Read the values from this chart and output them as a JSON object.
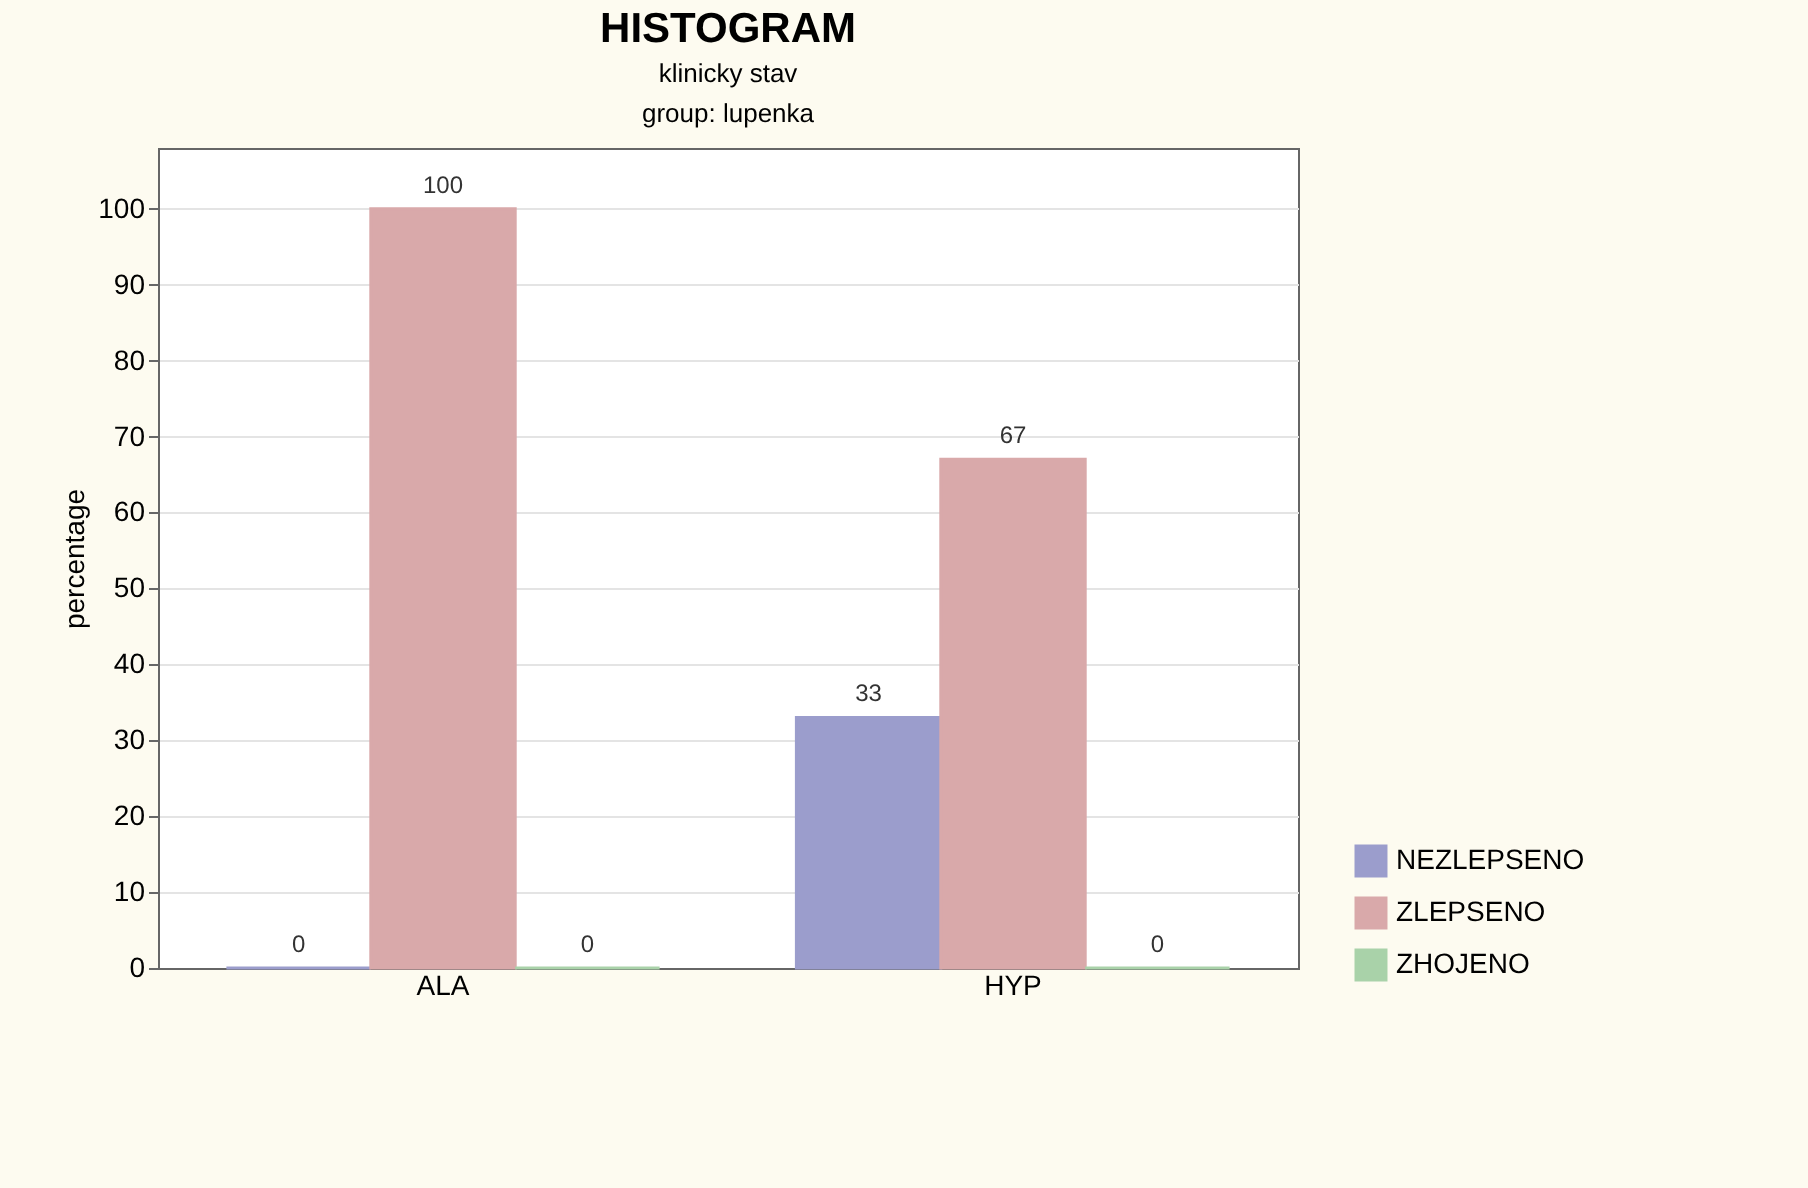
{
  "chart_data": {
    "type": "bar",
    "title": "HISTOGRAM",
    "subtitle": "klinicky stav\ngroup: lupenka",
    "ylabel": "percentage",
    "categories": [
      "ALA",
      "HYP"
    ],
    "series": [
      {
        "name": "NEZLEPSENO",
        "color": "#9b9dcc",
        "values": [
          0,
          33
        ]
      },
      {
        "name": "ZLEPSENO",
        "color": "#d9a9aa",
        "values": [
          100,
          67
        ]
      },
      {
        "name": "ZHOJENO",
        "color": "#a9d2a9",
        "values": [
          0,
          0
        ]
      }
    ],
    "ylim": [
      0,
      108
    ],
    "yticks": [
      0,
      10,
      20,
      30,
      40,
      50,
      60,
      70,
      80,
      90,
      100
    ],
    "grid": "y",
    "legend": "bottom right",
    "data_labels": true
  }
}
